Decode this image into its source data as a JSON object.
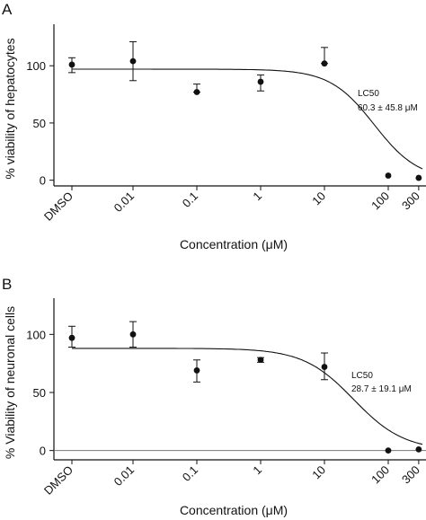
{
  "chart_data": [
    {
      "panel": "A",
      "type": "scatter",
      "ylabel": "% viability of hepatocytes",
      "xlabel": "Concentration (μM)",
      "x_tick_labels": [
        "DMSO",
        "0.01",
        "0.1",
        "1",
        "10",
        "100",
        "300"
      ],
      "y_ticks": [
        0,
        50,
        100
      ],
      "ylim": [
        -5,
        130
      ],
      "x_scale": "log (DMSO plotted at far left)",
      "grid": false,
      "legend": "none",
      "points": [
        {
          "x": "DMSO",
          "y": 101,
          "err_low": 94,
          "err_high": 107
        },
        {
          "x": 0.01,
          "y": 104,
          "err_low": 87,
          "err_high": 121
        },
        {
          "x": 0.1,
          "y": 77,
          "err_low": 77,
          "err_high": 84
        },
        {
          "x": 1,
          "y": 86,
          "err_low": 78,
          "err_high": 92
        },
        {
          "x": 10,
          "y": 102,
          "err_low": 102,
          "err_high": 116
        },
        {
          "x": 100,
          "y": 4,
          "err_low": 4,
          "err_high": 4
        },
        {
          "x": 300,
          "y": 2,
          "err_low": 2,
          "err_high": 2
        }
      ],
      "fit_curve": {
        "top": 97,
        "bottom": 0,
        "ec50": 60.3,
        "hill": 1.25
      },
      "zero_line": false,
      "annotation": [
        "LC50",
        "60.3 ± 45.8 μM"
      ]
    },
    {
      "panel": "B",
      "type": "scatter",
      "ylabel": "% Viability of neuronal cells",
      "xlabel": "Concentration (μM)",
      "x_tick_labels": [
        "DMSO",
        "0.01",
        "0.1",
        "1",
        "10",
        "100",
        "300"
      ],
      "y_ticks": [
        0,
        50,
        100
      ],
      "ylim": [
        -8,
        125
      ],
      "x_scale": "log (DMSO plotted at far left)",
      "grid": false,
      "legend": "none",
      "points": [
        {
          "x": "DMSO",
          "y": 97,
          "err_low": 89,
          "err_high": 107
        },
        {
          "x": 0.01,
          "y": 100,
          "err_low": 89,
          "err_high": 111
        },
        {
          "x": 0.1,
          "y": 69,
          "err_low": 59,
          "err_high": 78
        },
        {
          "x": 1,
          "y": 78,
          "err_low": 76,
          "err_high": 80
        },
        {
          "x": 10,
          "y": 72,
          "err_low": 61,
          "err_high": 84
        },
        {
          "x": 100,
          "y": 0,
          "err_low": 0,
          "err_high": 0
        },
        {
          "x": 300,
          "y": 1,
          "err_low": 1,
          "err_high": 1
        }
      ],
      "fit_curve": {
        "top": 88,
        "bottom": 0,
        "ec50": 28.7,
        "hill": 1.1
      },
      "zero_line": true,
      "annotation": [
        "LC50",
        "28.7 ± 19.1 μM"
      ]
    }
  ]
}
